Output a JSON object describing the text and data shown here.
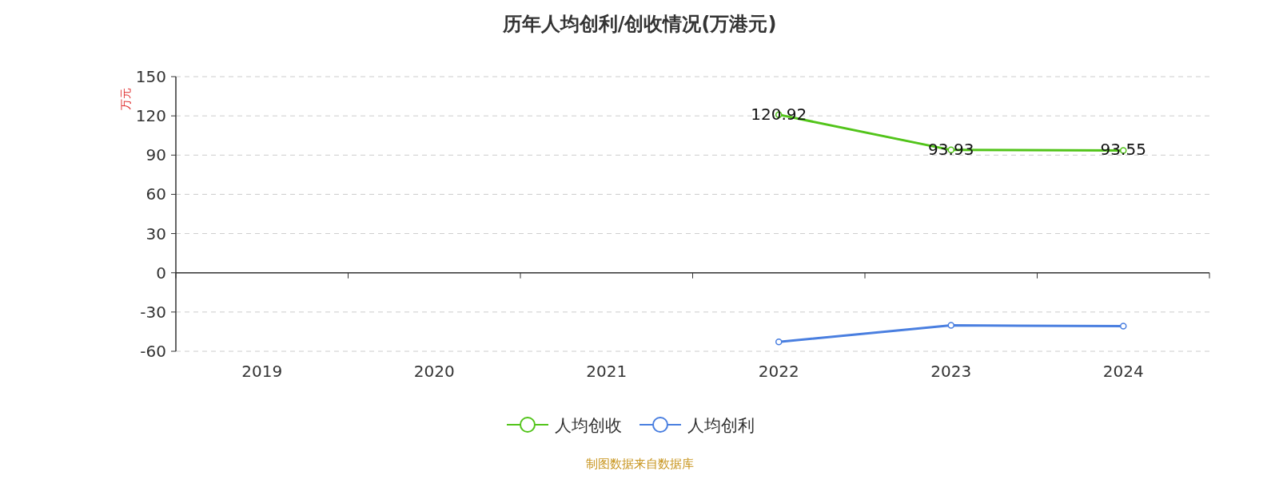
{
  "chart_data": {
    "type": "line",
    "title": "历年人均创利/创收情况(万港元)",
    "ylabel": "万元",
    "categories": [
      "2019",
      "2020",
      "2021",
      "2022",
      "2023",
      "2024"
    ],
    "series": [
      {
        "name": "人均创收",
        "color": "#52c41a",
        "values": [
          null,
          null,
          null,
          120.92,
          93.93,
          93.55
        ],
        "data_labels": true
      },
      {
        "name": "人均创利",
        "color": "#4a7fe0",
        "values": [
          null,
          null,
          null,
          -52.8,
          -40.2,
          -40.8
        ]
      }
    ],
    "ylim": [
      -60,
      150
    ],
    "yticks": [
      -60,
      -30,
      0,
      30,
      60,
      90,
      120,
      150
    ],
    "grid": "y",
    "legend": "bottom",
    "marker": "circle",
    "annotations": [
      "制图数据来自数据库"
    ]
  }
}
